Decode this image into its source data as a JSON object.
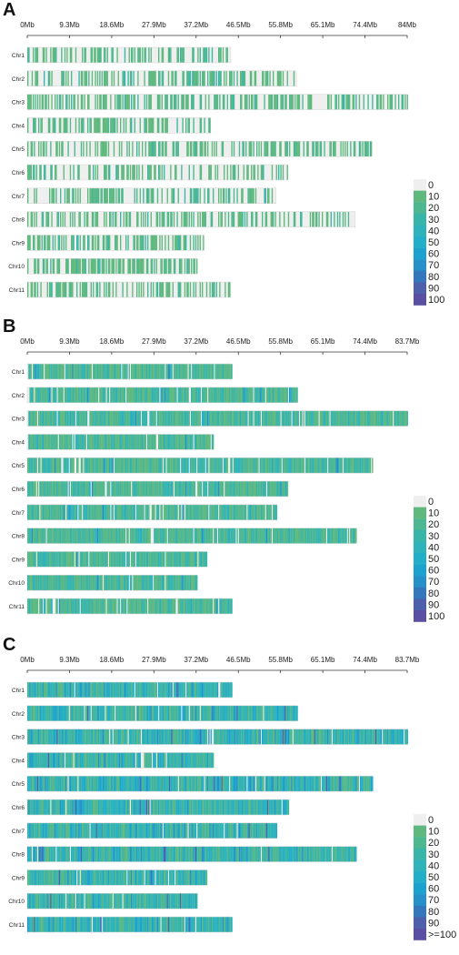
{
  "colors": {
    "zero": "#efefef",
    "scale": [
      "#efefef",
      "#5fb97e",
      "#4cb791",
      "#39b4a8",
      "#2fb3bb",
      "#22aec8",
      "#1ca2ce",
      "#2690cb",
      "#3577bd",
      "#4e5fac",
      "#5a4fa3"
    ]
  },
  "chart_data": [
    {
      "type": "heatmap",
      "panel_label": "A",
      "tick_labels": [
        "0Mb",
        "9.3Mb",
        "18.6Mb",
        "27.9Mb",
        "37.2Mb",
        "46.5Mb",
        "55.8Mb",
        "65.1Mb",
        "74.4Mb",
        "84Mb"
      ],
      "x_range": [
        0,
        84
      ],
      "x_unit": "Mb",
      "chromosomes": [
        {
          "name": "Chr1",
          "length": 45.0
        },
        {
          "name": "Chr2",
          "length": 59.5
        },
        {
          "name": "Chr3",
          "length": 84.0
        },
        {
          "name": "Chr4",
          "length": 40.5
        },
        {
          "name": "Chr5",
          "length": 76.0
        },
        {
          "name": "Chr6",
          "length": 57.5
        },
        {
          "name": "Chr7",
          "length": 55.0
        },
        {
          "name": "Chr8",
          "length": 72.5
        },
        {
          "name": "Chr9",
          "length": 39.0
        },
        {
          "name": "Chr10",
          "length": 37.5
        },
        {
          "name": "Chr11",
          "length": 45.0
        }
      ],
      "density_level": "low",
      "legend_labels": [
        "0",
        "10",
        "20",
        "30",
        "40",
        "50",
        "60",
        "70",
        "80",
        "90",
        "100"
      ]
    },
    {
      "type": "heatmap",
      "panel_label": "B",
      "tick_labels": [
        "0Mb",
        "9.3Mb",
        "18.6Mb",
        "27.9Mb",
        "37.2Mb",
        "46.5Mb",
        "55.8Mb",
        "65.1Mb",
        "74.4Mb",
        "83.7Mb"
      ],
      "x_range": [
        0,
        83.7
      ],
      "x_unit": "Mb",
      "chromosomes": [
        {
          "name": "Chr1",
          "length": 45.0
        },
        {
          "name": "Chr2",
          "length": 59.5
        },
        {
          "name": "Chr3",
          "length": 83.7
        },
        {
          "name": "Chr4",
          "length": 41.0
        },
        {
          "name": "Chr5",
          "length": 76.0
        },
        {
          "name": "Chr6",
          "length": 57.5
        },
        {
          "name": "Chr7",
          "length": 55.0
        },
        {
          "name": "Chr8",
          "length": 72.5
        },
        {
          "name": "Chr9",
          "length": 39.5
        },
        {
          "name": "Chr10",
          "length": 37.5
        },
        {
          "name": "Chr11",
          "length": 45.0
        }
      ],
      "density_level": "medium",
      "legend_labels": [
        "0",
        "10",
        "20",
        "30",
        "40",
        "50",
        "60",
        "70",
        "80",
        "90",
        "100"
      ]
    },
    {
      "type": "heatmap",
      "panel_label": "C",
      "tick_labels": [
        "0Mb",
        "9.3Mb",
        "18.6Mb",
        "27.9Mb",
        "37.2Mb",
        "46.5Mb",
        "55.8Mb",
        "65.1Mb",
        "74.4Mb",
        "83.7Mb"
      ],
      "x_range": [
        0,
        83.7
      ],
      "x_unit": "Mb",
      "chromosomes": [
        {
          "name": "Chr1",
          "length": 45.0
        },
        {
          "name": "Chr2",
          "length": 59.5
        },
        {
          "name": "Chr3",
          "length": 83.7
        },
        {
          "name": "Chr4",
          "length": 41.0
        },
        {
          "name": "Chr5",
          "length": 76.0
        },
        {
          "name": "Chr6",
          "length": 57.5
        },
        {
          "name": "Chr7",
          "length": 55.0
        },
        {
          "name": "Chr8",
          "length": 72.5
        },
        {
          "name": "Chr9",
          "length": 39.5
        },
        {
          "name": "Chr10",
          "length": 37.5
        },
        {
          "name": "Chr11",
          "length": 45.0
        }
      ],
      "density_level": "high",
      "legend_labels": [
        "0",
        "10",
        "20",
        "30",
        "40",
        "50",
        "60",
        "70",
        "80",
        "90",
        ">=100"
      ]
    }
  ]
}
